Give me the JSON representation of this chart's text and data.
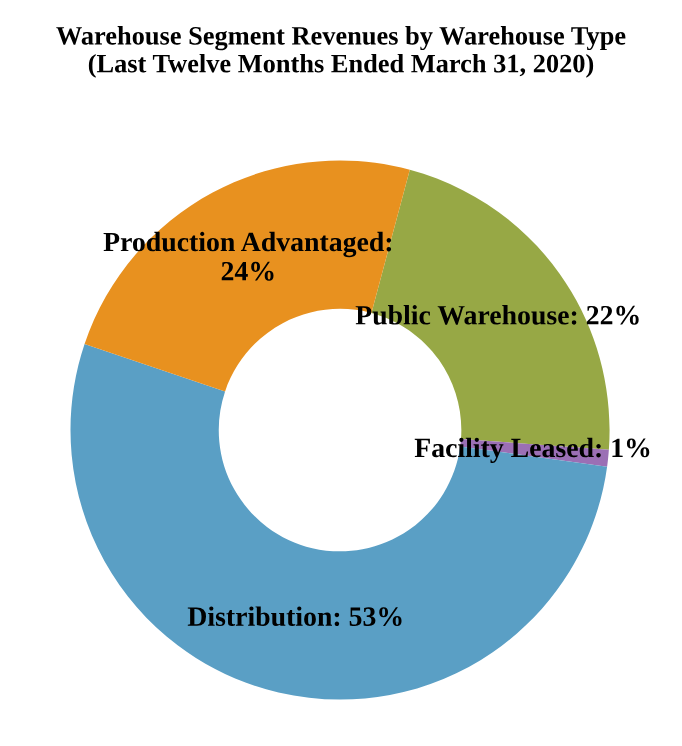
{
  "chart_data": {
    "type": "donut",
    "title": "Warehouse Segment Revenues by Warehouse Type\n(Last Twelve Months Ended March 31, 2020)",
    "categories": [
      "Public Warehouse: 22%",
      "Facility Leased: 1%",
      "Distribution: 53%",
      "Production Advantaged: 24%"
    ],
    "values": [
      22,
      1,
      53,
      24
    ],
    "colors": [
      "#97a845",
      "#9b6fb5",
      "#5a9fc5",
      "#e8911f"
    ]
  }
}
